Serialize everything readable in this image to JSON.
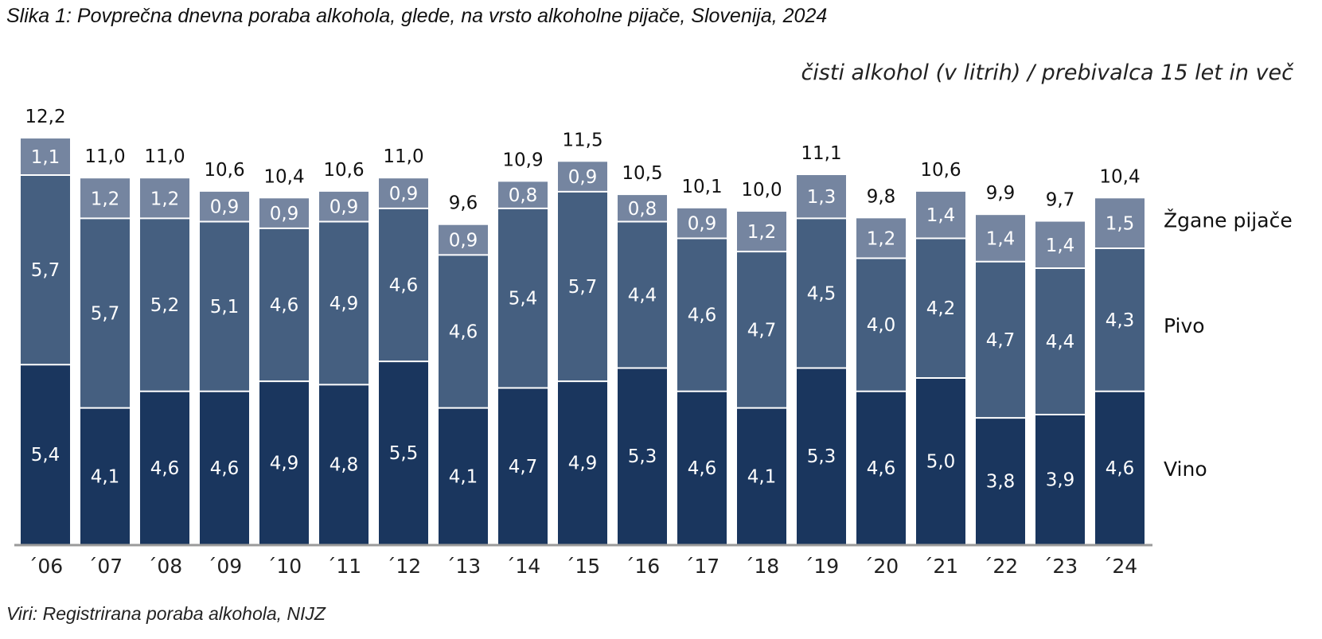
{
  "title": "Slika 1: Povprečna dnevna poraba alkohola, glede, na vrsto alkoholne pijače, Slovenija, 2024",
  "unit_label": "čisti alkohol (v litrih) / prebivalca 15 let in več",
  "source": "Viri: Registrirana poraba alkohola, NIJZ",
  "colors": {
    "vino": "#1a365e",
    "pivo": "#455f80",
    "zgane": "#7585a0",
    "axis": "#9a9a9a",
    "separator": "#ffffff"
  },
  "chart_data": {
    "type": "bar",
    "stacked": true,
    "categories": [
      "´06",
      "´07",
      "´08",
      "´09",
      "´10",
      "´11",
      "´12",
      "´13",
      "´14",
      "´15",
      "´16",
      "´17",
      "´18",
      "´19",
      "´20",
      "´21",
      "´22",
      "´23",
      "´24"
    ],
    "series": [
      {
        "name": "Vino",
        "values": [
          "5,4",
          "4,1",
          "4,6",
          "4,6",
          "4,9",
          "4,8",
          "5,5",
          "4,1",
          "4,7",
          "4,9",
          "5,3",
          "4,6",
          "4,1",
          "5,3",
          "4,6",
          "5,0",
          "3,8",
          "3,9",
          "4,6"
        ]
      },
      {
        "name": "Pivo",
        "values": [
          "5,7",
          "5,7",
          "5,2",
          "5,1",
          "4,6",
          "4,9",
          "4,6",
          "4,6",
          "5,4",
          "5,7",
          "4,4",
          "4,6",
          "4,7",
          "4,5",
          "4,0",
          "4,2",
          "4,7",
          "4,4",
          "4,3"
        ]
      },
      {
        "name": "Žgane pijače",
        "values": [
          "1,1",
          "1,2",
          "1,2",
          "0,9",
          "0,9",
          "0,9",
          "0,9",
          "0,9",
          "0,8",
          "0,9",
          "0,8",
          "0,9",
          "1,2",
          "1,3",
          "1,2",
          "1,4",
          "1,4",
          "1,4",
          "1,5"
        ]
      }
    ],
    "totals": [
      "12,2",
      "11,0",
      "11,0",
      "10,6",
      "10,4",
      "10,6",
      "11,0",
      "9,6",
      "10,9",
      "11,5",
      "10,5",
      "10,1",
      "10,0",
      "11,1",
      "9,8",
      "10,6",
      "9,9",
      "9,7",
      "10,4"
    ],
    "ylim": [
      0,
      12.2
    ],
    "grid": false,
    "legend": "right"
  }
}
